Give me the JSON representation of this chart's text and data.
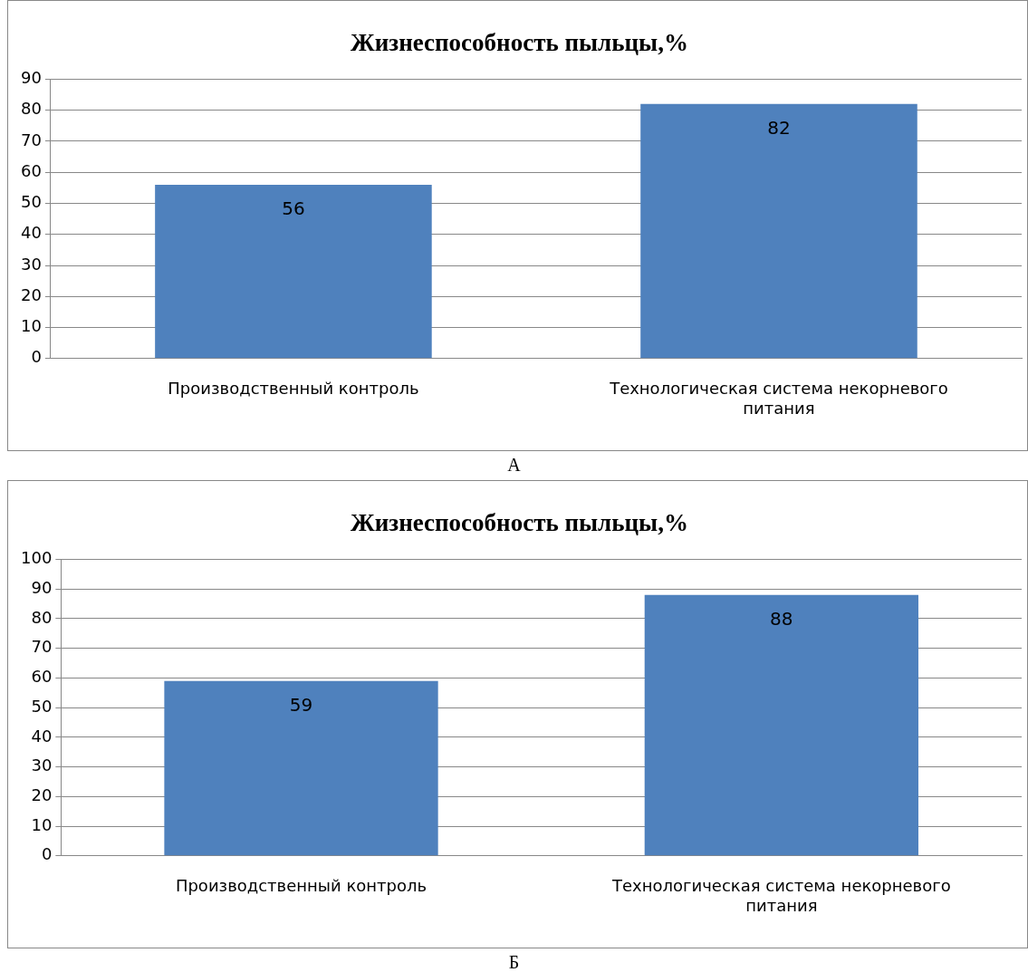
{
  "chart_data": [
    {
      "type": "bar",
      "title": "Жизнеспособность пыльцы,%",
      "categories": [
        "Производственный контроль",
        "Технологическая система некорневого питания"
      ],
      "values": [
        56,
        82
      ],
      "color": "#4f81bd",
      "ylim": [
        0,
        90
      ],
      "yticks": [
        0,
        10,
        20,
        30,
        40,
        50,
        60,
        70,
        80,
        90
      ],
      "grid": "y",
      "legend": false,
      "data_labels": true,
      "annotations": [
        "А"
      ]
    },
    {
      "type": "bar",
      "title": "Жизнеспособность пыльцы,%",
      "categories": [
        "Производственный контроль",
        "Технологическая система некорневого питания"
      ],
      "values": [
        59,
        88
      ],
      "color": "#4f81bd",
      "ylim": [
        0,
        100
      ],
      "yticks": [
        0,
        10,
        20,
        30,
        40,
        50,
        60,
        70,
        80,
        90,
        100
      ],
      "grid": "y",
      "legend": false,
      "data_labels": true,
      "annotations": [
        "Б"
      ]
    }
  ]
}
